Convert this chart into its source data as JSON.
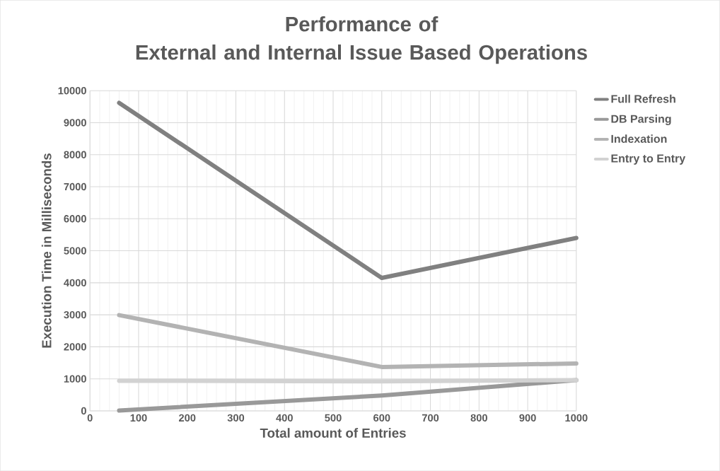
{
  "chart_data": {
    "type": "line",
    "title": "Performance of External and Internal Issue Based Operations",
    "xlabel": "Total amount of Entries",
    "ylabel": "Execution Time in Milliseconds",
    "x": [
      60,
      600,
      1000
    ],
    "series": [
      {
        "name": "Full Refresh",
        "color": "#808080",
        "values": [
          9620,
          4150,
          5400
        ]
      },
      {
        "name": "DB Parsing",
        "color": "#999999",
        "values": [
          10,
          480,
          960
        ]
      },
      {
        "name": "Indexation",
        "color": "#b3b3b3",
        "values": [
          2990,
          1370,
          1480
        ]
      },
      {
        "name": "Entry to Entry",
        "color": "#d2d2d2",
        "values": [
          940,
          920,
          960
        ]
      }
    ],
    "xlim": [
      0,
      1000
    ],
    "xticks": [
      0,
      100,
      200,
      300,
      400,
      500,
      600,
      700,
      800,
      900,
      1000
    ],
    "ylim": [
      0,
      10000
    ],
    "yticks": [
      0,
      1000,
      2000,
      3000,
      4000,
      5000,
      6000,
      7000,
      8000,
      9000,
      10000
    ],
    "grid": true,
    "legend": "right",
    "marker": "none",
    "line_style": "solid"
  }
}
